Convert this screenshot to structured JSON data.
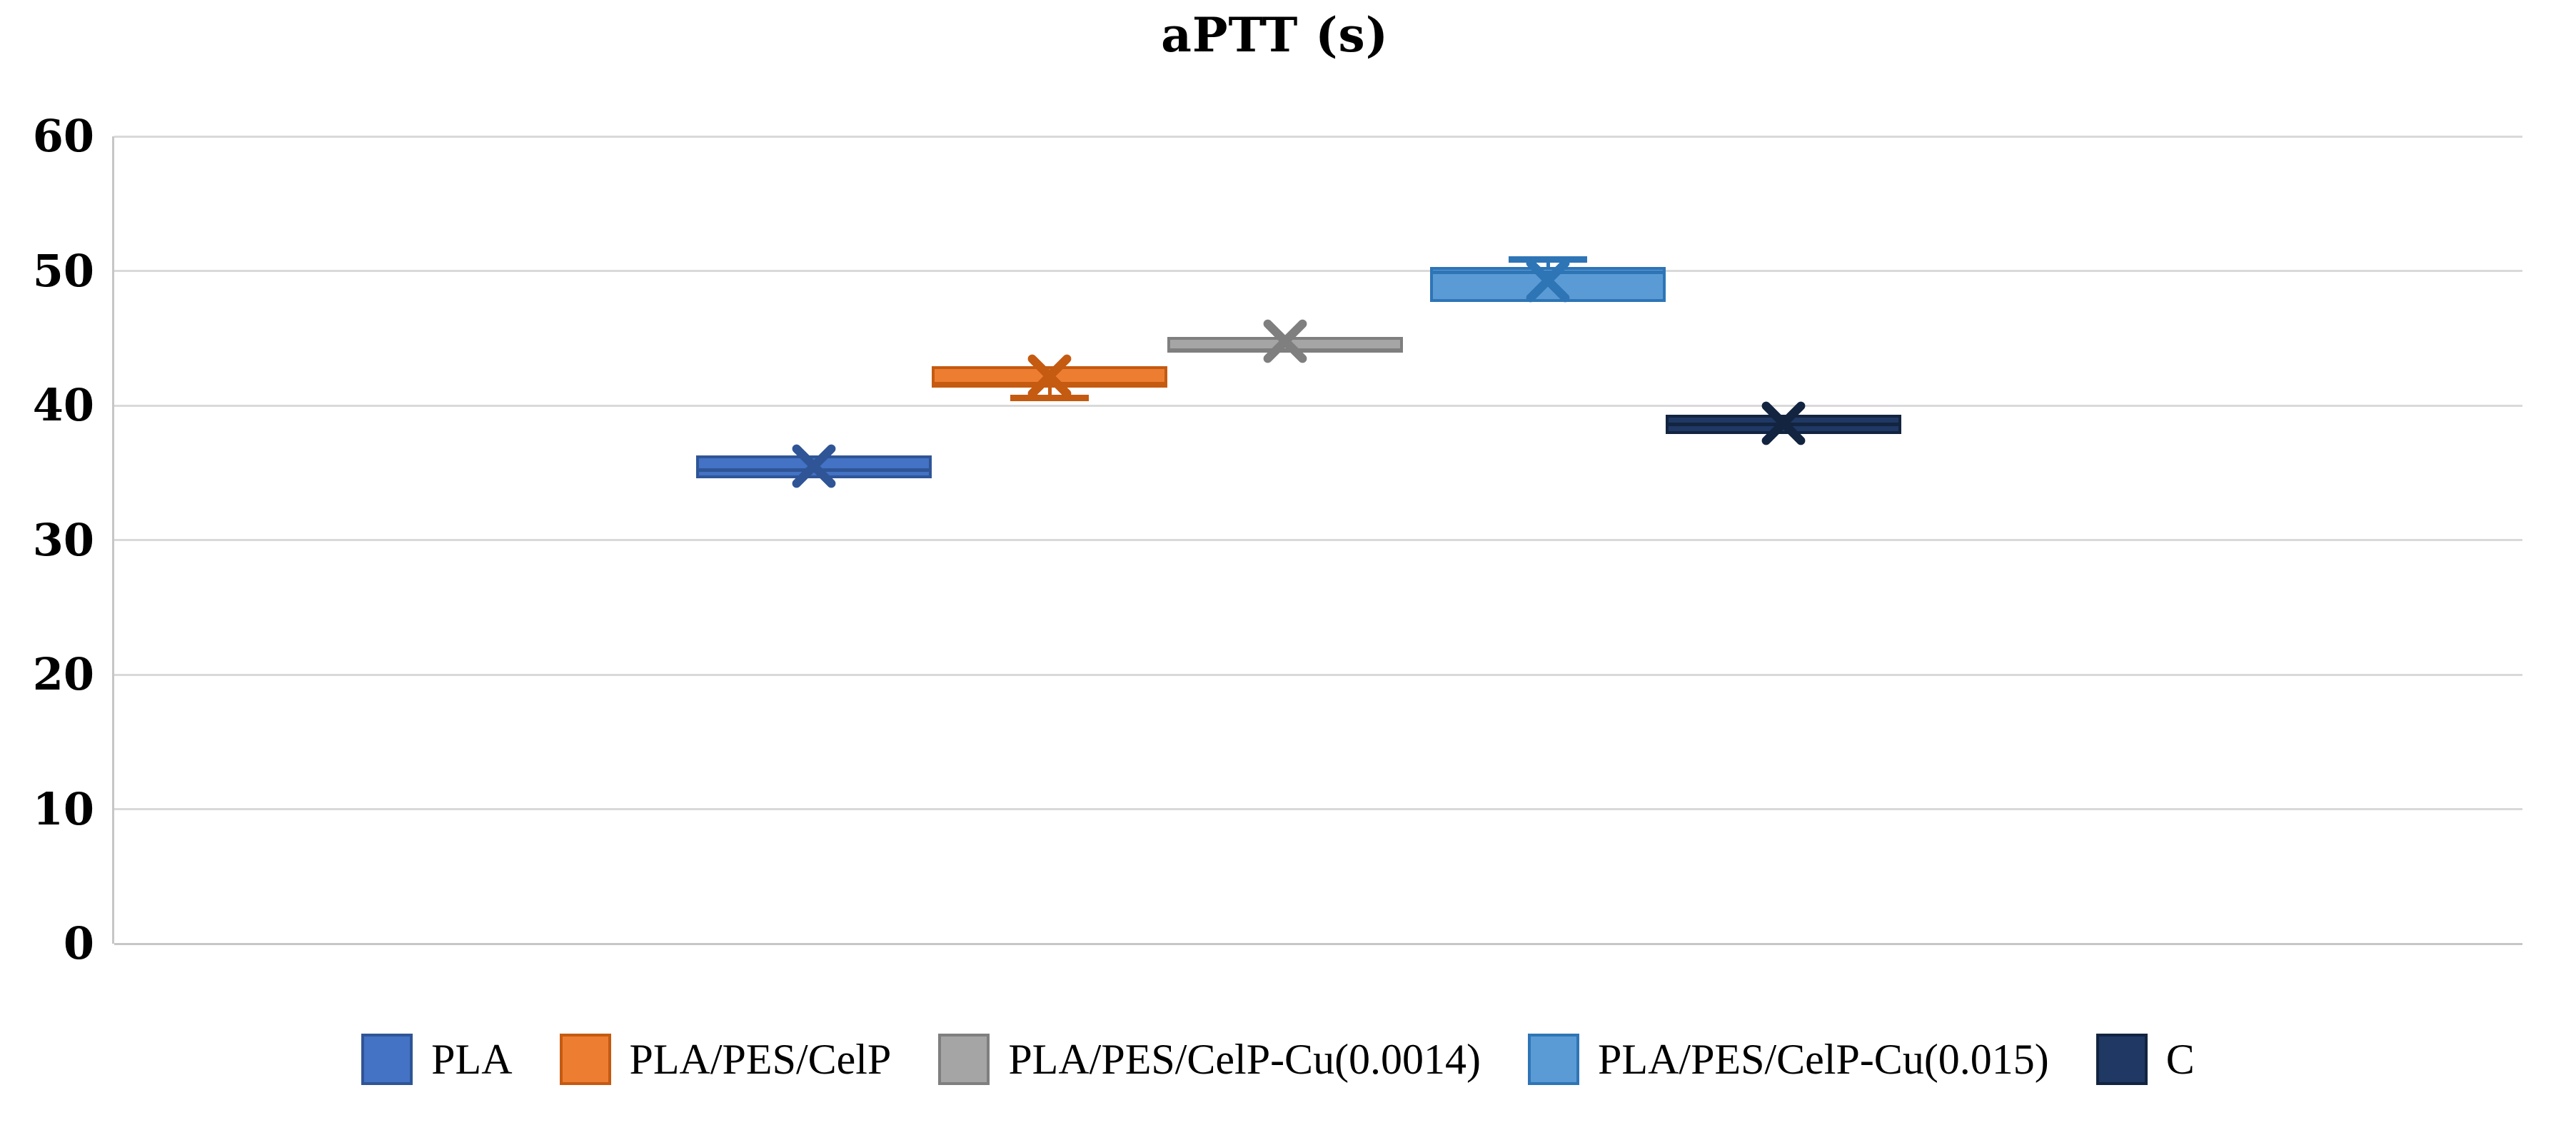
{
  "chart_data": {
    "type": "boxplot",
    "title": "aPTT (s)",
    "xlabel": "",
    "ylabel": "",
    "ylim": [
      0,
      60
    ],
    "yticks": [
      0,
      10,
      20,
      30,
      40,
      50,
      60
    ],
    "grid": true,
    "legend_position": "bottom",
    "gridline_color": "#D9D9D9",
    "axis_line_color": "#C6C6C6",
    "text_color": "#000000",
    "mean_marker": "x",
    "series": [
      {
        "name": "PLA",
        "fill": "#4472C4",
        "border": "#2F5597",
        "q1": 34.6,
        "median": 35.2,
        "q3": 36.3,
        "mean": 35.5
      },
      {
        "name": "PLA/PES/CelP",
        "fill": "#ED7D31",
        "border": "#C55A11",
        "q1": 41.3,
        "median": 41.6,
        "q3": 42.9,
        "mean": 42.2,
        "whisker_low": 40.6
      },
      {
        "name": "PLA/PES/CelP-Cu(0.0014)",
        "fill": "#A5A5A5",
        "border": "#7F7F7F",
        "q1": 43.9,
        "median": 44.1,
        "q3": 45.1,
        "mean": 44.8
      },
      {
        "name": "PLA/PES/CelP-Cu(0.015)",
        "fill": "#5B9BD5",
        "border": "#2E75B6",
        "q1": 47.7,
        "median": 49.9,
        "q3": 50.3,
        "mean": 49.3,
        "whisker_high": 50.9
      },
      {
        "name": "C",
        "fill": "#1F3864",
        "border": "#132440",
        "q1": 37.9,
        "median": 38.6,
        "q3": 39.3,
        "mean": 38.7
      }
    ]
  }
}
